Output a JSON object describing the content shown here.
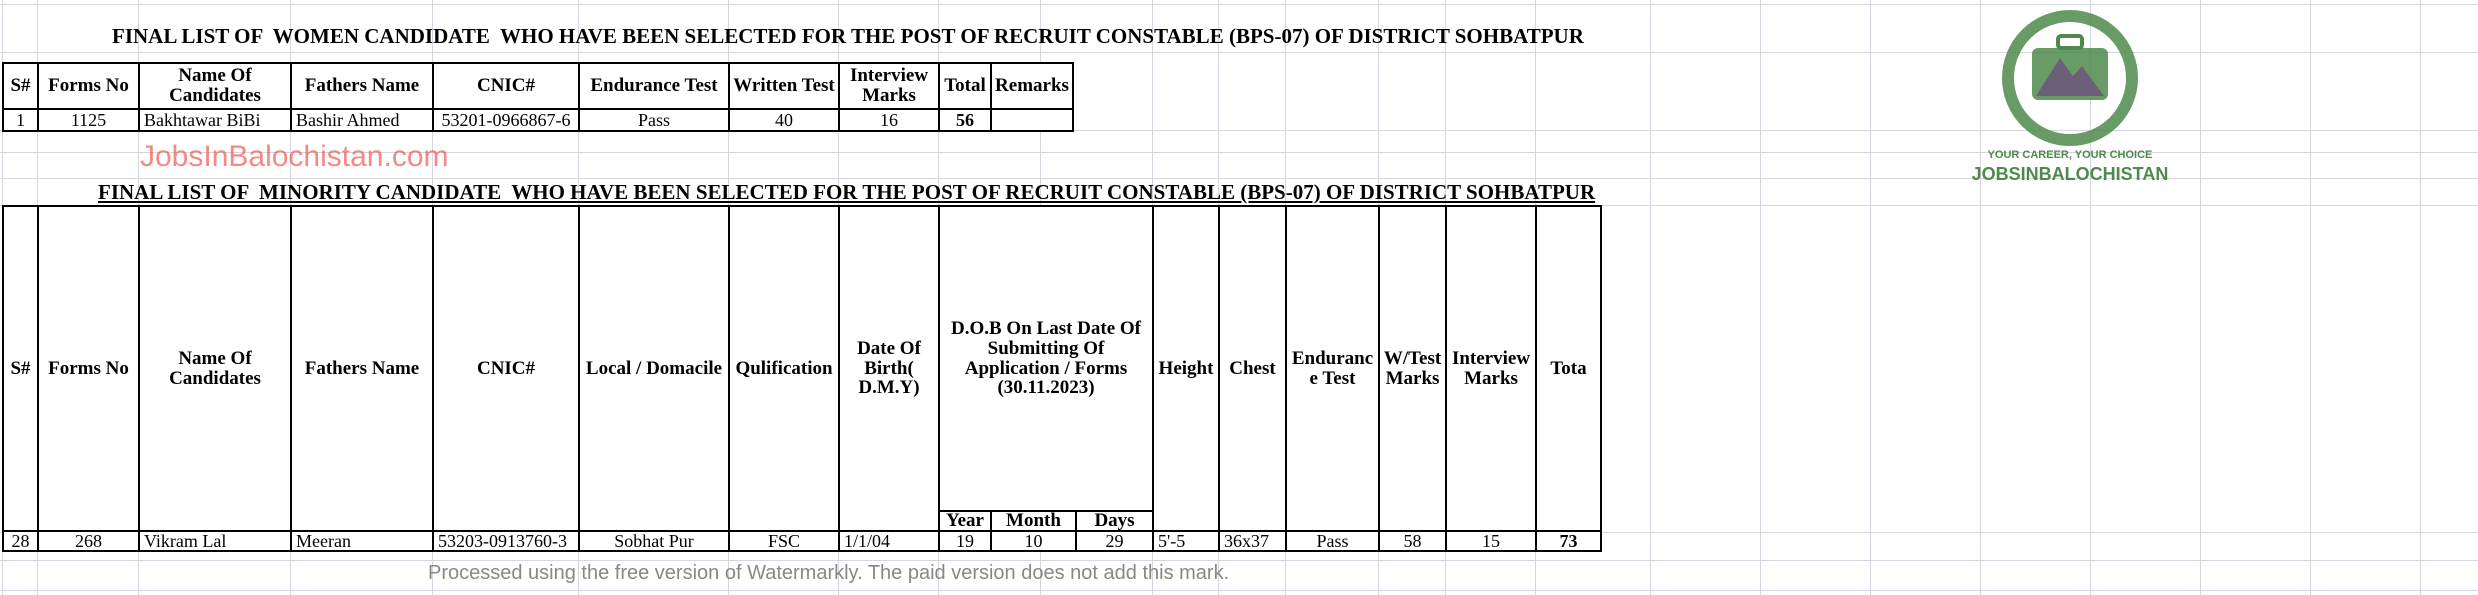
{
  "women_list": {
    "title": "FINAL LIST OF  WOMEN CANDIDATE  WHO HAVE BEEN SELECTED FOR THE POST OF RECRUIT CONSTABLE (BPS-07) OF DISTRICT SOHBATPUR",
    "headers": [
      "S#",
      "Forms No",
      "Name Of Candidates",
      "Fathers Name",
      "CNIC#",
      "Endurance Test",
      "Written Test",
      "Interview Marks",
      "Total",
      "Remarks"
    ],
    "rows": [
      [
        "1",
        "1125",
        "Bakhtawar BiBi",
        "Bashir Ahmed",
        "53201-0966867-6",
        "Pass",
        "40",
        "16",
        "56",
        ""
      ]
    ]
  },
  "minority_list": {
    "title": "FINAL LIST OF  MINORITY CANDIDATE  WHO HAVE BEEN SELECTED FOR THE POST OF RECRUIT CONSTABLE (BPS-07) OF DISTRICT SOHBATPUR",
    "headers": [
      "S#",
      "Forms No",
      "Name Of Candidates",
      "Fathers Name",
      "CNIC#",
      "Local / Domacile",
      "Qulification",
      "Date Of Birth( D.M.Y)",
      "D.O.B On Last Date Of Submitting Of Application / Forms (30.11.2023)",
      "Height",
      "Chest",
      "Endurance Test",
      "W/Test Marks",
      "Interview Marks",
      "Tota"
    ],
    "dob_subheaders": [
      "Year",
      "Month",
      "Days"
    ],
    "rows": [
      [
        "28",
        "268",
        "Vikram Lal",
        "Meeran",
        "53203-0913760-3",
        "Sobhat Pur",
        "FSC",
        "1/1/04",
        "19",
        "10",
        "29",
        "5'-5",
        "36x37",
        "Pass",
        "58",
        "15",
        "73"
      ]
    ]
  },
  "watermarks": {
    "site": "JobsInBalochistan.com",
    "logo_text": "JOBSINBALOCHISTAN",
    "logo_slogan": "YOUR CAREER, YOUR CHOICE",
    "processed": "Processed using the free version of Watermarkly. The paid version does not add this mark."
  },
  "colors": {
    "logo_green": "#4f8a4c",
    "watermark_red": "#eb3c32"
  }
}
